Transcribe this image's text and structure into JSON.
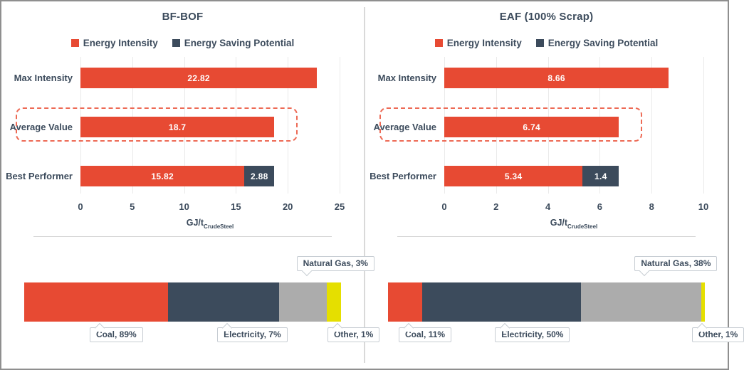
{
  "colors": {
    "energy_intensity_red": "#e74a33",
    "energy_saving_slate": "#3c4b5c",
    "natural_gas_gray": "#acacac",
    "other_yellow": "#e5df00",
    "text": "#3c4b5c",
    "grid": "#eaeaea",
    "callout_border": "#c7cdd3",
    "separator": "#d4d4d4",
    "frame_border": "#8f8f8f",
    "panel_divider": "#d9d9d9",
    "highlight_dashed": "#ed6a55"
  },
  "legend": {
    "items": [
      {
        "label": "Energy Intensity",
        "color": "#e74a33"
      },
      {
        "label": "Energy Saving Potential",
        "color": "#3c4b5c"
      }
    ]
  },
  "axis": {
    "label_main": "GJ/t",
    "label_sub": "CrudeSteel"
  },
  "chart_data": [
    {
      "panel_title": "BF-BOF",
      "intensity_chart": {
        "type": "bar",
        "orientation": "horizontal",
        "title": "BF-BOF",
        "legend": [
          "Energy Intensity",
          "Energy Saving Potential"
        ],
        "legend_position": "top",
        "grid": "vertical",
        "categories": [
          "Max Intensity",
          "Average Value",
          "Best Performer"
        ],
        "series": [
          {
            "name": "Energy Intensity",
            "color": "#e74a33",
            "values": [
              22.82,
              18.7,
              15.82
            ],
            "labels": [
              "22.82",
              "18.7",
              "15.82"
            ]
          },
          {
            "name": "Energy Saving Potential",
            "color": "#3c4b5c",
            "values": [
              0,
              0,
              2.88
            ],
            "labels": [
              "",
              "",
              "2.88"
            ]
          }
        ],
        "xlim": [
          0,
          25
        ],
        "xticks": [
          0,
          5,
          10,
          15,
          20,
          25
        ],
        "xtick_labels": [
          "0",
          "5",
          "10",
          "15",
          "20",
          "25"
        ],
        "xlabel": "GJ/t_CrudeSteel",
        "highlighted_category": "Average Value",
        "annotation": "red dashed rounded outline around Average Value row"
      },
      "fuel_mix_chart": {
        "type": "stacked-bar",
        "segments": [
          {
            "name": "Coal",
            "label": "Coal, 89%",
            "pct": 89,
            "display_pct": 45.4,
            "color": "#e74a33",
            "label_side": "below"
          },
          {
            "name": "Electricity",
            "label": "Electricity, 7%",
            "pct": 7,
            "display_pct": 35.1,
            "color": "#3c4b5c",
            "label_side": "below"
          },
          {
            "name": "Natural Gas",
            "label": "Natural Gas, 3%",
            "pct": 3,
            "display_pct": 15.0,
            "color": "#acacac",
            "label_side": "above"
          },
          {
            "name": "Other",
            "label": "Other, 1%",
            "pct": 1,
            "display_pct": 4.5,
            "color": "#e5df00",
            "label_side": "below"
          }
        ]
      }
    },
    {
      "panel_title": "EAF (100% Scrap)",
      "intensity_chart": {
        "type": "bar",
        "orientation": "horizontal",
        "title": "EAF (100% Scrap)",
        "legend": [
          "Energy Intensity",
          "Energy Saving Potential"
        ],
        "legend_position": "top",
        "grid": "vertical",
        "categories": [
          "Max Intensity",
          "Average Value",
          "Best Performer"
        ],
        "series": [
          {
            "name": "Energy Intensity",
            "color": "#e74a33",
            "values": [
              8.66,
              6.74,
              5.34
            ],
            "labels": [
              "8.66",
              "6.74",
              "5.34"
            ]
          },
          {
            "name": "Energy Saving Potential",
            "color": "#3c4b5c",
            "values": [
              0,
              0,
              1.4
            ],
            "labels": [
              "",
              "",
              "1.4"
            ]
          }
        ],
        "xlim": [
          0,
          10
        ],
        "xticks": [
          0,
          2,
          4,
          6,
          8,
          10
        ],
        "xtick_labels": [
          "0",
          "2",
          "4",
          "6",
          "8",
          "10"
        ],
        "xlabel": "GJ/t_CrudeSteel",
        "highlighted_category": "Average Value",
        "annotation": "red dashed rounded outline around Average Value row"
      },
      "fuel_mix_chart": {
        "type": "stacked-bar",
        "segments": [
          {
            "name": "Coal",
            "label": "Coal, 11%",
            "pct": 11,
            "display_pct": 10.8,
            "color": "#e74a33",
            "label_side": "below"
          },
          {
            "name": "Electricity",
            "label": "Electricity, 50%",
            "pct": 50,
            "display_pct": 50.0,
            "color": "#3c4b5c",
            "label_side": "below"
          },
          {
            "name": "Natural Gas",
            "label": "Natural Gas, 38%",
            "pct": 38,
            "display_pct": 38.1,
            "color": "#acacac",
            "label_side": "above"
          },
          {
            "name": "Other",
            "label": "Other, 1%",
            "pct": 1,
            "display_pct": 1.1,
            "color": "#e5df00",
            "label_side": "below"
          }
        ]
      }
    }
  ]
}
